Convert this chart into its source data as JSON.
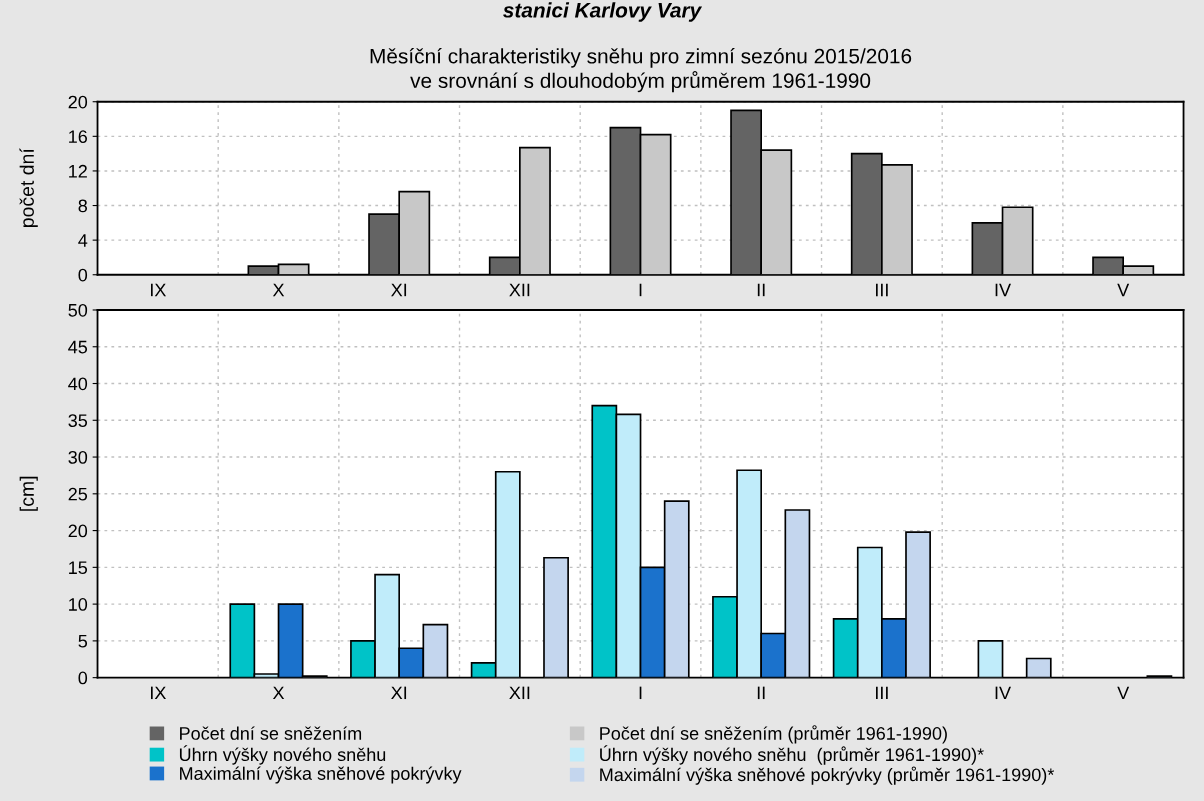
{
  "chart_data": [
    {
      "type": "bar",
      "title": "Měsíční charakteristiky sněhu pro zimní sezónu 2015/2016\nve srovnání s dlouhodobým průměrem 1961-1990",
      "annotations": [
        "stanici Karlovy Vary"
      ],
      "ylabel": "počet dní",
      "categories": [
        "IX",
        "X",
        "XI",
        "XII",
        "I",
        "II",
        "III",
        "IV",
        "V"
      ],
      "ylim": [
        0,
        20
      ],
      "yticks": [
        0,
        4,
        8,
        12,
        16,
        20
      ],
      "grid": true,
      "legend": "bottom",
      "series": [
        {
          "name": "Počet dní se sněžením",
          "color": "#646464",
          "values": [
            0,
            1,
            7,
            2,
            17,
            19,
            14,
            6,
            2
          ]
        },
        {
          "name": "Počet dní se sněžením (průměr 1961-1990)",
          "color": "#c8c8c8",
          "values": [
            0,
            1.2,
            9.6,
            14.7,
            16.2,
            14.4,
            12.7,
            7.8,
            1.0
          ]
        }
      ]
    },
    {
      "type": "bar",
      "ylabel": "[cm]",
      "categories": [
        "IX",
        "X",
        "XI",
        "XII",
        "I",
        "II",
        "III",
        "IV",
        "V"
      ],
      "ylim": [
        0,
        50
      ],
      "yticks": [
        0,
        5,
        10,
        15,
        20,
        25,
        30,
        35,
        40,
        45,
        50
      ],
      "grid": true,
      "legend": "bottom",
      "series": [
        {
          "name": "Úhrn výšky nového sněhu",
          "color": "#00c3c8",
          "values": [
            0,
            10,
            5,
            2,
            37,
            11,
            8,
            0,
            0
          ]
        },
        {
          "name": "Úhrn výšky nového sněhu  (průměr 1961-1990)*",
          "color": "#c0ecfa",
          "values": [
            0,
            0.5,
            14,
            28,
            35.8,
            28.2,
            17.7,
            5,
            0
          ]
        },
        {
          "name": "Maximální výška sněhové pokrývky",
          "color": "#1b72cc",
          "values": [
            0,
            10,
            4,
            0,
            15,
            6,
            8,
            0,
            0
          ]
        },
        {
          "name": "Maximální výška sněhové pokrývky (průměr 1961-1990)*",
          "color": "#c4d6ee",
          "values": [
            0,
            0.2,
            7.2,
            16.3,
            24,
            22.8,
            19.8,
            2.6,
            0.2
          ]
        }
      ]
    }
  ]
}
